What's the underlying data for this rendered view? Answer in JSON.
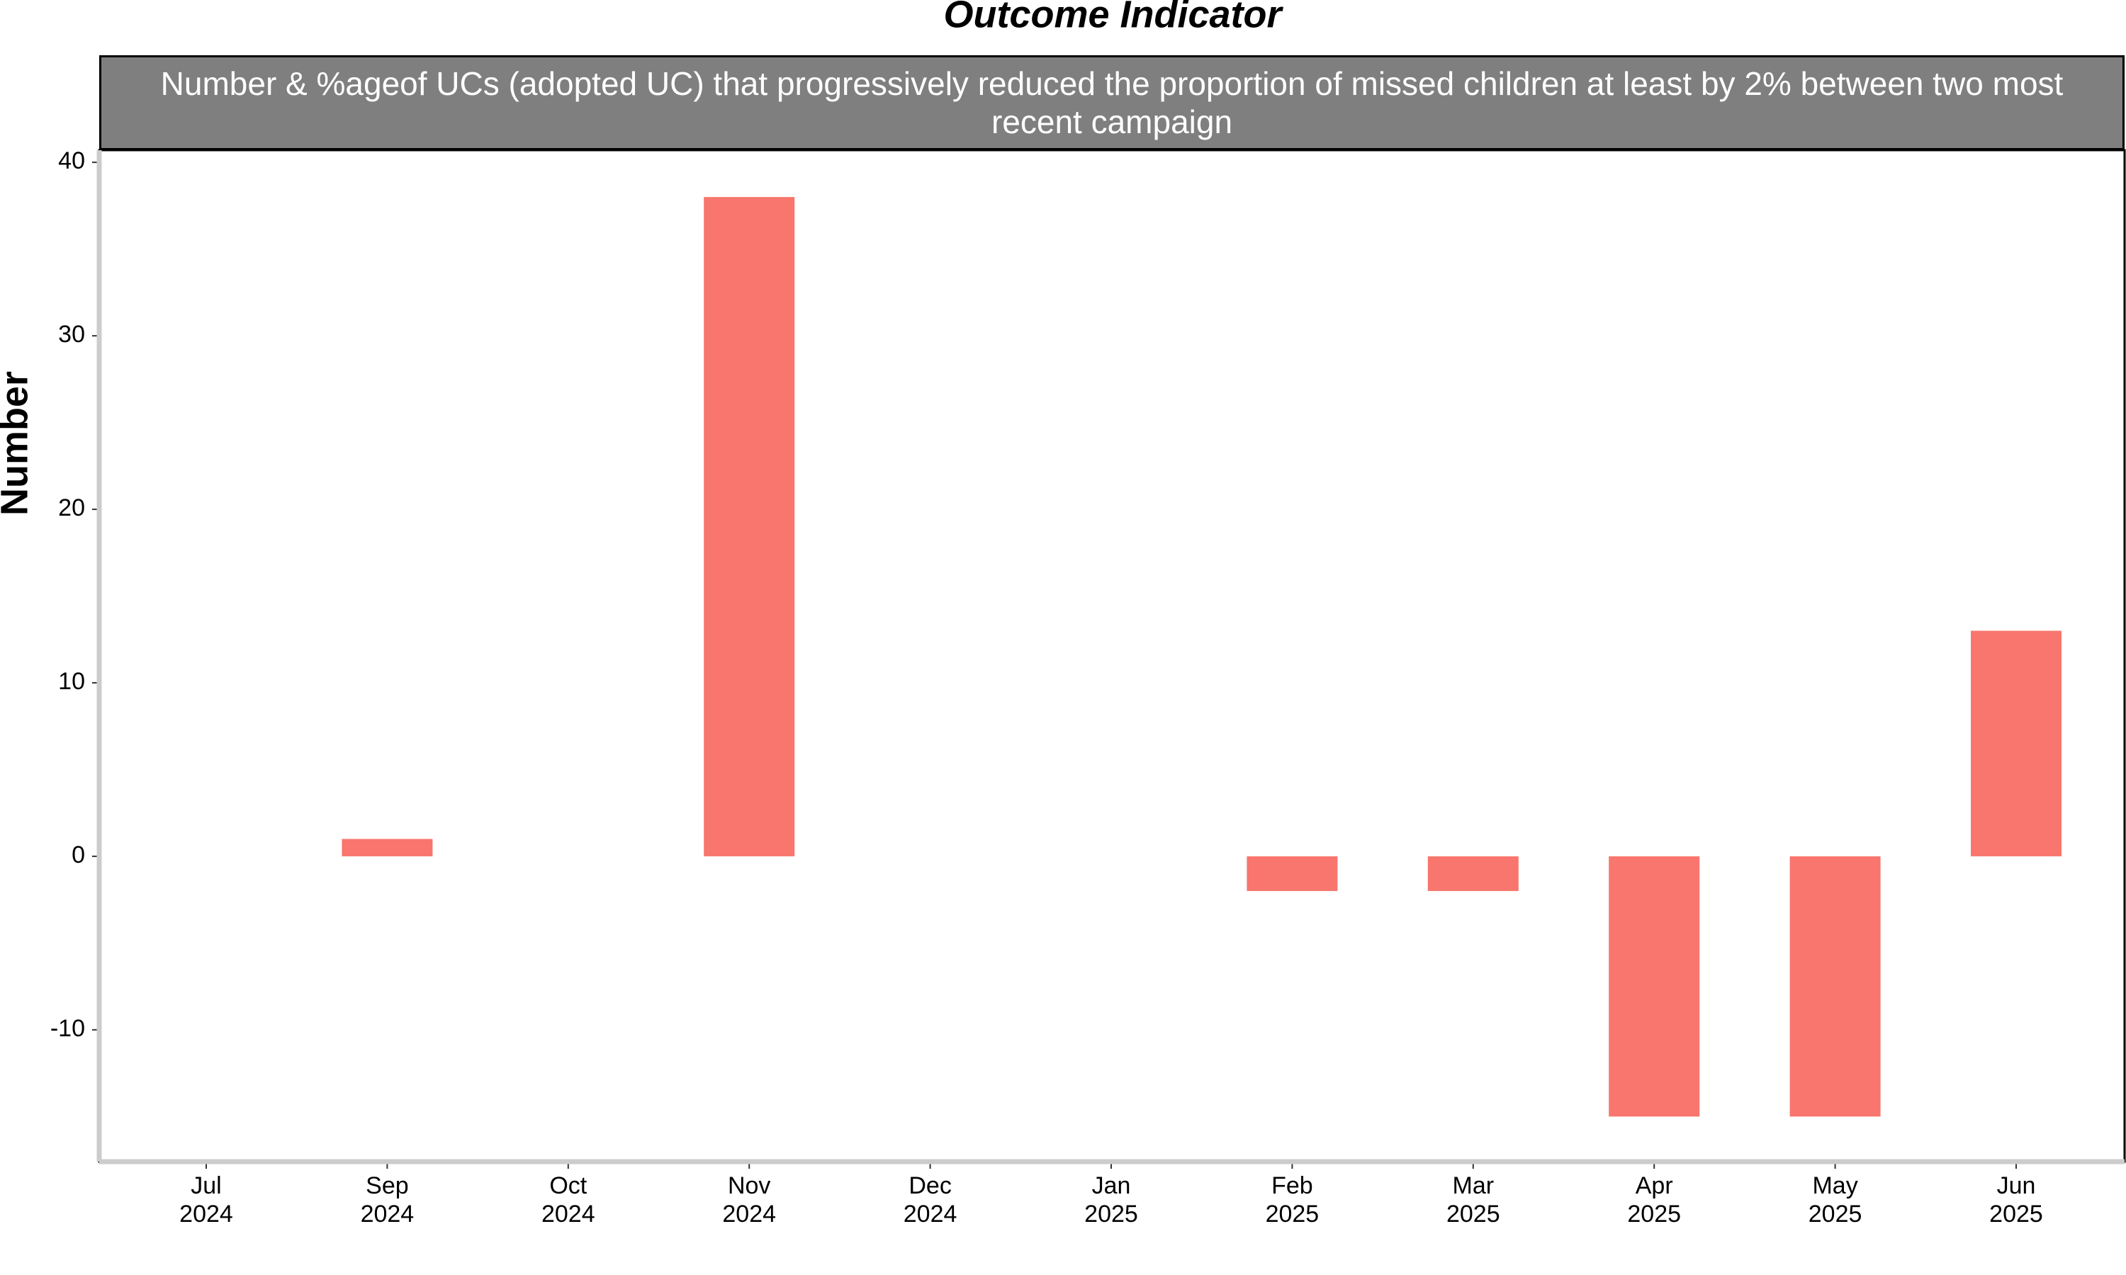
{
  "chart_data": {
    "type": "bar",
    "title": "Outcome Indicator",
    "subtitle": "Number & %ageof UCs (adopted UC) that progressively reduced the proportion of missed children at least by 2% between two most recent campaign",
    "y_label": "Number",
    "categories": [
      "Jul 2024",
      "Sep 2024",
      "Oct 2024",
      "Nov 2024",
      "Dec 2024",
      "Jan 2025",
      "Feb 2025",
      "Mar 2025",
      "Apr 2025",
      "May 2025",
      "Jun 2025"
    ],
    "values": [
      null,
      1,
      null,
      38,
      null,
      null,
      -2,
      -2,
      -15,
      -15,
      13
    ],
    "color": "#f8766d",
    "ylim": [
      -17.6,
      40.7
    ],
    "yticks": [
      -10,
      0,
      10,
      20,
      30,
      40
    ],
    "grid": false
  }
}
